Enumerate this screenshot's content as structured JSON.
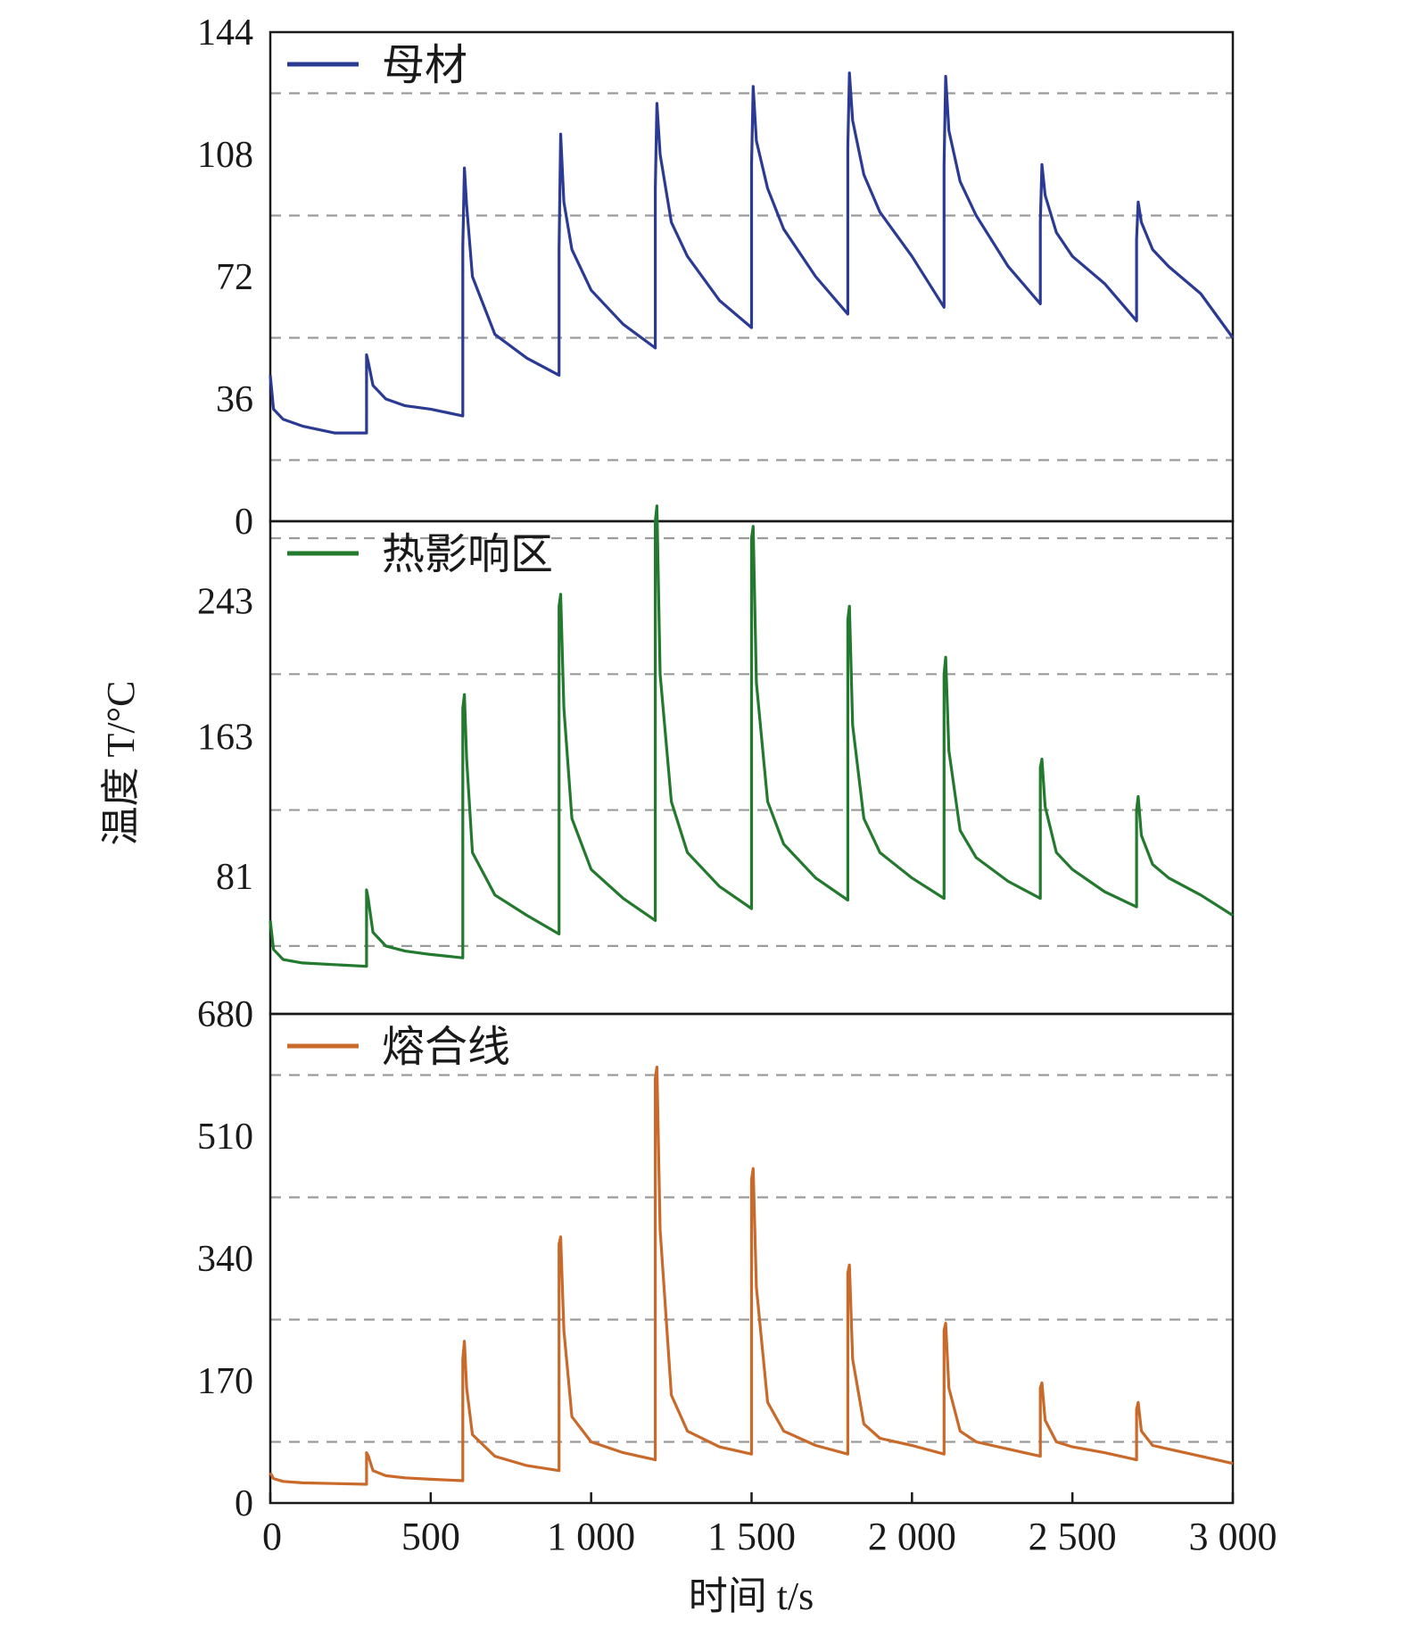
{
  "chart_data": {
    "type": "line",
    "ylabel": "温度 T/°C",
    "xlabel": "时间 t/s",
    "xlim": [
      0,
      3000
    ],
    "xticks": [
      0,
      500,
      1000,
      1500,
      2000,
      2500,
      3000
    ],
    "xtick_labels": [
      "0",
      "500",
      "1 000",
      "1 500",
      "2 000",
      "2 500",
      "3 000"
    ],
    "grid": "horizontal dashed",
    "legend_position": "top-left",
    "panels": [
      {
        "series": [
          {
            "name": "母材",
            "color": "#2b3a93",
            "points": [
              [
                0,
                43
              ],
              [
                10,
                33
              ],
              [
                40,
                30
              ],
              [
                100,
                28
              ],
              [
                200,
                26
              ],
              [
                300,
                26
              ],
              [
                300,
                49
              ],
              [
                305,
                47
              ],
              [
                320,
                40
              ],
              [
                360,
                36
              ],
              [
                420,
                34
              ],
              [
                500,
                33
              ],
              [
                600,
                31
              ],
              [
                600,
                81
              ],
              [
                605,
                104
              ],
              [
                612,
                93
              ],
              [
                630,
                72
              ],
              [
                700,
                55
              ],
              [
                800,
                48
              ],
              [
                900,
                43
              ],
              [
                900,
                80
              ],
              [
                905,
                114
              ],
              [
                915,
                94
              ],
              [
                940,
                80
              ],
              [
                1000,
                68
              ],
              [
                1100,
                58
              ],
              [
                1200,
                51
              ],
              [
                1200,
                98
              ],
              [
                1205,
                123
              ],
              [
                1215,
                108
              ],
              [
                1250,
                88
              ],
              [
                1300,
                78
              ],
              [
                1400,
                65
              ],
              [
                1500,
                57
              ],
              [
                1500,
                105
              ],
              [
                1505,
                128
              ],
              [
                1515,
                112
              ],
              [
                1550,
                98
              ],
              [
                1600,
                86
              ],
              [
                1700,
                72
              ],
              [
                1800,
                61
              ],
              [
                1800,
                110
              ],
              [
                1805,
                132
              ],
              [
                1815,
                118
              ],
              [
                1850,
                102
              ],
              [
                1900,
                91
              ],
              [
                2000,
                78
              ],
              [
                2100,
                63
              ],
              [
                2100,
                105
              ],
              [
                2105,
                131
              ],
              [
                2115,
                115
              ],
              [
                2150,
                100
              ],
              [
                2200,
                90
              ],
              [
                2300,
                75
              ],
              [
                2400,
                64
              ],
              [
                2400,
                88
              ],
              [
                2405,
                105
              ],
              [
                2415,
                96
              ],
              [
                2450,
                85
              ],
              [
                2500,
                78
              ],
              [
                2600,
                70
              ],
              [
                2700,
                59
              ],
              [
                2700,
                83
              ],
              [
                2705,
                94
              ],
              [
                2715,
                88
              ],
              [
                2750,
                80
              ],
              [
                2800,
                75
              ],
              [
                2900,
                67
              ],
              [
                3000,
                54
              ]
            ]
          }
        ],
        "ylim": [
          0,
          144
        ],
        "yticks": [
          "0",
          "36",
          "72",
          "108",
          "144"
        ],
        "grid_values": [
          18,
          54,
          90,
          126
        ]
      },
      {
        "series": [
          {
            "name": "热影响区",
            "color": "#237a2e",
            "points": [
              [
                0,
                55
              ],
              [
                10,
                38
              ],
              [
                40,
                32
              ],
              [
                100,
                30
              ],
              [
                200,
                29
              ],
              [
                300,
                28
              ],
              [
                300,
                73
              ],
              [
                305,
                68
              ],
              [
                320,
                48
              ],
              [
                360,
                40
              ],
              [
                420,
                37
              ],
              [
                500,
                35
              ],
              [
                600,
                33
              ],
              [
                600,
                180
              ],
              [
                605,
                188
              ],
              [
                612,
                150
              ],
              [
                630,
                95
              ],
              [
                700,
                70
              ],
              [
                800,
                58
              ],
              [
                900,
                47
              ],
              [
                900,
                240
              ],
              [
                905,
                247
              ],
              [
                915,
                180
              ],
              [
                940,
                115
              ],
              [
                1000,
                85
              ],
              [
                1100,
                68
              ],
              [
                1200,
                55
              ],
              [
                1200,
                290
              ],
              [
                1205,
                299
              ],
              [
                1215,
                200
              ],
              [
                1250,
                125
              ],
              [
                1300,
                95
              ],
              [
                1400,
                75
              ],
              [
                1500,
                62
              ],
              [
                1500,
                280
              ],
              [
                1505,
                287
              ],
              [
                1515,
                195
              ],
              [
                1550,
                125
              ],
              [
                1600,
                100
              ],
              [
                1700,
                80
              ],
              [
                1800,
                67
              ],
              [
                1800,
                232
              ],
              [
                1805,
                240
              ],
              [
                1815,
                170
              ],
              [
                1850,
                115
              ],
              [
                1900,
                95
              ],
              [
                2000,
                80
              ],
              [
                2100,
                68
              ],
              [
                2100,
                200
              ],
              [
                2105,
                210
              ],
              [
                2115,
                155
              ],
              [
                2150,
                108
              ],
              [
                2200,
                92
              ],
              [
                2300,
                78
              ],
              [
                2400,
                68
              ],
              [
                2400,
                145
              ],
              [
                2405,
                150
              ],
              [
                2415,
                122
              ],
              [
                2450,
                95
              ],
              [
                2500,
                85
              ],
              [
                2600,
                72
              ],
              [
                2700,
                63
              ],
              [
                2700,
                120
              ],
              [
                2705,
                128
              ],
              [
                2715,
                105
              ],
              [
                2750,
                88
              ],
              [
                2800,
                80
              ],
              [
                2900,
                70
              ],
              [
                3000,
                58
              ]
            ]
          }
        ],
        "ylim": [
          0,
          290
        ],
        "yticks": [
          "0",
          "81",
          "163",
          "243"
        ],
        "grid_values": [
          40,
          120,
          200,
          280,
          290
        ]
      },
      {
        "series": [
          {
            "name": "熔合线",
            "color": "#c9692a",
            "points": [
              [
                0,
                42
              ],
              [
                10,
                34
              ],
              [
                40,
                30
              ],
              [
                100,
                28
              ],
              [
                200,
                27
              ],
              [
                300,
                26
              ],
              [
                300,
                70
              ],
              [
                305,
                66
              ],
              [
                320,
                45
              ],
              [
                360,
                38
              ],
              [
                420,
                35
              ],
              [
                500,
                33
              ],
              [
                600,
                31
              ],
              [
                600,
                200
              ],
              [
                605,
                225
              ],
              [
                612,
                160
              ],
              [
                630,
                95
              ],
              [
                700,
                65
              ],
              [
                800,
                52
              ],
              [
                900,
                45
              ],
              [
                900,
                360
              ],
              [
                905,
                370
              ],
              [
                915,
                240
              ],
              [
                940,
                120
              ],
              [
                1000,
                85
              ],
              [
                1100,
                70
              ],
              [
                1200,
                60
              ],
              [
                1200,
                590
              ],
              [
                1205,
                606
              ],
              [
                1215,
                380
              ],
              [
                1250,
                150
              ],
              [
                1300,
                100
              ],
              [
                1400,
                78
              ],
              [
                1500,
                68
              ],
              [
                1500,
                450
              ],
              [
                1505,
                465
              ],
              [
                1515,
                300
              ],
              [
                1550,
                140
              ],
              [
                1600,
                100
              ],
              [
                1700,
                80
              ],
              [
                1800,
                68
              ],
              [
                1800,
                320
              ],
              [
                1805,
                331
              ],
              [
                1815,
                200
              ],
              [
                1850,
                110
              ],
              [
                1900,
                90
              ],
              [
                2000,
                80
              ],
              [
                2100,
                68
              ],
              [
                2100,
                240
              ],
              [
                2105,
                250
              ],
              [
                2115,
                160
              ],
              [
                2150,
                100
              ],
              [
                2200,
                85
              ],
              [
                2300,
                75
              ],
              [
                2400,
                65
              ],
              [
                2400,
                160
              ],
              [
                2405,
                167
              ],
              [
                2415,
                115
              ],
              [
                2450,
                85
              ],
              [
                2500,
                78
              ],
              [
                2600,
                70
              ],
              [
                2700,
                60
              ],
              [
                2700,
                130
              ],
              [
                2705,
                140
              ],
              [
                2715,
                100
              ],
              [
                2750,
                80
              ],
              [
                2800,
                75
              ],
              [
                2900,
                65
              ],
              [
                3000,
                55
              ]
            ]
          }
        ],
        "ylim": [
          0,
          680
        ],
        "yticks": [
          "0",
          "170",
          "340",
          "510",
          "680"
        ],
        "grid_values": [
          85,
          255,
          425,
          595
        ]
      }
    ]
  }
}
